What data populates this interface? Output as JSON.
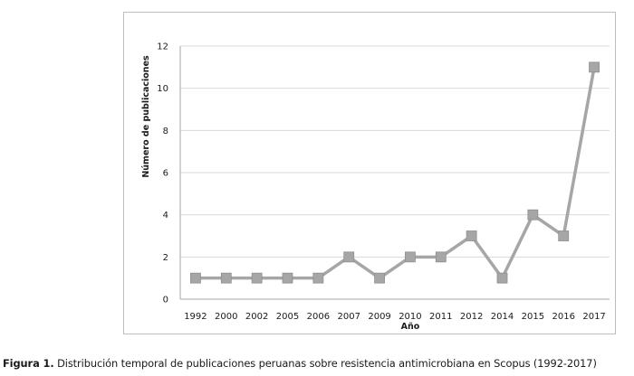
{
  "caption": {
    "label": "Figura 1.",
    "text": "Distribución temporal de publicaciones peruanas sobre resistencia antimicrobiana en Scopus (1992-2017)"
  },
  "chart_data": {
    "type": "line",
    "categories": [
      "1992",
      "2000",
      "2002",
      "2005",
      "2006",
      "2007",
      "2009",
      "2010",
      "2011",
      "2012",
      "2014",
      "2015",
      "2016",
      "2017"
    ],
    "series": [
      {
        "values": [
          1,
          1,
          1,
          1,
          1,
          2,
          1,
          2,
          2,
          3,
          1,
          4,
          3,
          11
        ]
      }
    ],
    "xlabel": "Año",
    "ylabel": "Número de publicaciones",
    "ylim": [
      0,
      12
    ],
    "yticks": [
      0,
      2,
      4,
      6,
      8,
      10,
      12
    ],
    "grid": true,
    "legend": "none",
    "colors": {
      "line": "#a6a6a6",
      "marker": "#a6a6a6",
      "grid": "#d9d9d9",
      "axis": "#a6a6a6"
    }
  }
}
